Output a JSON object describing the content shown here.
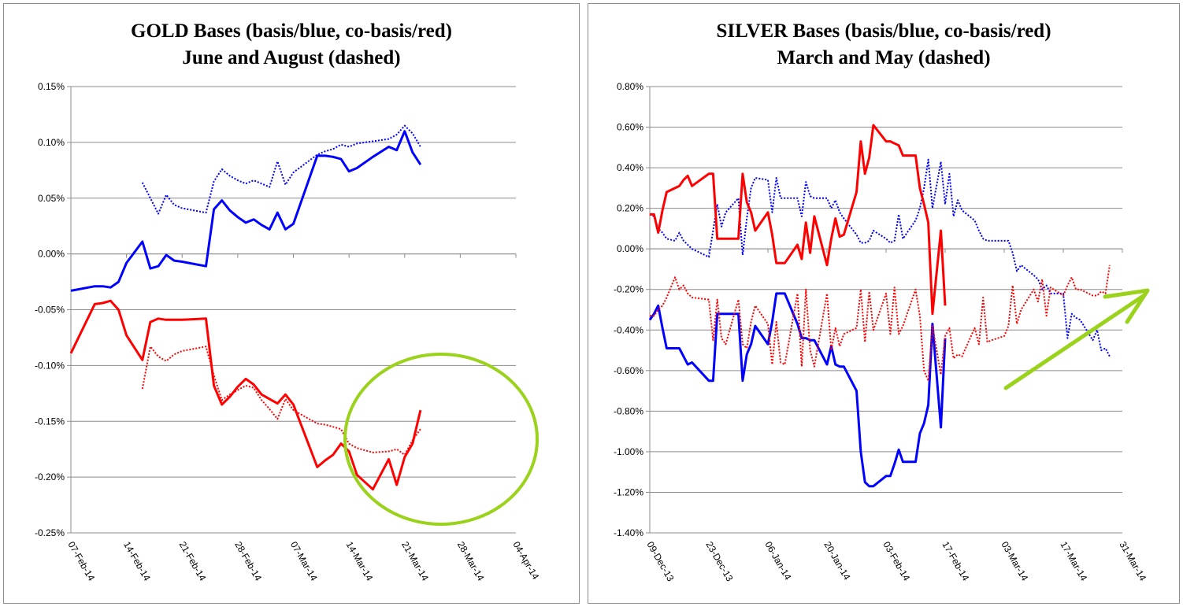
{
  "chart_data": [
    {
      "type": "line",
      "title": "GOLD Bases (basis/blue, co-basis/red)",
      "subtitle": "June and August (dashed)",
      "ylim": [
        -0.25,
        0.15
      ],
      "yticks": [
        "-0.25%",
        "-0.20%",
        "-0.15%",
        "-0.10%",
        "-0.05%",
        "0.00%",
        "0.05%",
        "0.10%",
        "0.15%"
      ],
      "xticks": [
        "07-Feb-14",
        "14-Feb-14",
        "21-Feb-14",
        "28-Feb-14",
        "07-Mar-14",
        "14-Mar-14",
        "21-Mar-14",
        "28-Mar-14",
        "04-Apr-14"
      ],
      "xlim_days": [
        0,
        56
      ],
      "grid": "horizontal",
      "series": [
        {
          "color": "#0000ff",
          "style": "solid",
          "x": [
            0,
            3,
            4,
            5,
            6,
            7,
            9,
            10,
            11,
            12,
            13,
            14,
            17,
            18,
            19,
            20,
            21,
            22,
            23,
            24,
            25,
            26,
            27,
            28,
            31,
            32,
            33,
            34,
            35,
            36,
            38,
            40,
            41,
            42,
            43,
            44
          ],
          "y": [
            -0.033,
            -0.029,
            -0.029,
            -0.03,
            -0.025,
            -0.008,
            0.011,
            -0.013,
            -0.011,
            -0.001,
            -0.006,
            -0.007,
            -0.011,
            0.04,
            0.048,
            0.039,
            0.033,
            0.028,
            0.031,
            0.026,
            0.022,
            0.037,
            0.022,
            0.027,
            0.088,
            0.088,
            0.087,
            0.085,
            0.074,
            0.077,
            0.087,
            0.096,
            0.093,
            0.11,
            0.091,
            0.08
          ]
        },
        {
          "color": "#0000ff",
          "style": "dotted",
          "x": [
            9,
            10,
            11,
            12,
            13,
            14,
            17,
            18,
            19,
            20,
            21,
            22,
            23,
            24,
            25,
            26,
            27,
            28,
            31,
            32,
            33,
            34,
            35,
            36,
            38,
            40,
            41,
            42,
            43,
            44
          ],
          "y": [
            0.064,
            0.05,
            0.036,
            0.053,
            0.044,
            0.041,
            0.037,
            0.065,
            0.076,
            0.07,
            0.066,
            0.063,
            0.066,
            0.063,
            0.06,
            0.083,
            0.062,
            0.073,
            0.089,
            0.092,
            0.094,
            0.098,
            0.096,
            0.099,
            0.101,
            0.103,
            0.107,
            0.115,
            0.108,
            0.096
          ]
        },
        {
          "color": "#ff0000",
          "style": "solid",
          "x": [
            0,
            3,
            4,
            5,
            6,
            7,
            9,
            10,
            11,
            12,
            13,
            14,
            17,
            18,
            19,
            20,
            21,
            22,
            23,
            24,
            25,
            26,
            27,
            28,
            31,
            32,
            33,
            34,
            35,
            36,
            38,
            40,
            41,
            42,
            43,
            44
          ],
          "y": [
            -0.089,
            -0.045,
            -0.044,
            -0.042,
            -0.05,
            -0.073,
            -0.095,
            -0.061,
            -0.058,
            -0.059,
            -0.059,
            -0.059,
            -0.058,
            -0.118,
            -0.135,
            -0.128,
            -0.119,
            -0.112,
            -0.117,
            -0.126,
            -0.13,
            -0.134,
            -0.126,
            -0.135,
            -0.191,
            -0.185,
            -0.18,
            -0.17,
            -0.177,
            -0.198,
            -0.211,
            -0.184,
            -0.207,
            -0.182,
            -0.17,
            -0.14
          ]
        },
        {
          "color": "#ff0000",
          "style": "dotted",
          "x": [
            9,
            10,
            11,
            12,
            13,
            14,
            17,
            18,
            19,
            20,
            21,
            22,
            23,
            24,
            25,
            26,
            27,
            28,
            31,
            32,
            33,
            34,
            35,
            36,
            38,
            40,
            41,
            42,
            43,
            44
          ],
          "y": [
            -0.121,
            -0.083,
            -0.092,
            -0.096,
            -0.09,
            -0.087,
            -0.083,
            -0.109,
            -0.131,
            -0.126,
            -0.122,
            -0.118,
            -0.12,
            -0.131,
            -0.139,
            -0.148,
            -0.13,
            -0.14,
            -0.152,
            -0.153,
            -0.155,
            -0.157,
            -0.17,
            -0.174,
            -0.178,
            -0.177,
            -0.175,
            -0.18,
            -0.167,
            -0.157
          ]
        }
      ],
      "annotation": {
        "shape": "ellipse",
        "color": "#9ad21c"
      }
    },
    {
      "type": "line",
      "title": "SILVER Bases (basis/blue, co-basis/red)",
      "subtitle": "March and May (dashed)",
      "ylim": [
        -1.4,
        0.8
      ],
      "yticks": [
        "-1.40%",
        "-1.20%",
        "-1.00%",
        "-0.80%",
        "-0.60%",
        "-0.40%",
        "-0.20%",
        "0.00%",
        "0.20%",
        "0.40%",
        "0.60%",
        "0.80%"
      ],
      "xticks": [
        "09-Dec-13",
        "23-Dec-13",
        "06-Jan-14",
        "20-Jan-14",
        "03-Feb-14",
        "17-Feb-14",
        "03-Mar-14",
        "17-Mar-14",
        "31-Mar-14"
      ],
      "xlim_days": [
        0,
        112
      ],
      "grid": "horizontal",
      "series": [
        {
          "color": "#0000ff",
          "style": "solid",
          "x": [
            0,
            1,
            2,
            3,
            4,
            6,
            7,
            8,
            9,
            10,
            14,
            15,
            16,
            17,
            18,
            21,
            22,
            23,
            24,
            25,
            28,
            29,
            30,
            31,
            32,
            35,
            36,
            37,
            38,
            39,
            42,
            43,
            44,
            45,
            46,
            49,
            50,
            51,
            52,
            53,
            56,
            57,
            58,
            59,
            60,
            63,
            64,
            65,
            66,
            67,
            69,
            70
          ],
          "y": [
            -0.35,
            -0.32,
            -0.28,
            -0.39,
            -0.49,
            -0.49,
            -0.49,
            -0.53,
            -0.57,
            -0.56,
            -0.65,
            -0.65,
            -0.32,
            -0.32,
            -0.32,
            -0.32,
            -0.65,
            -0.52,
            -0.47,
            -0.38,
            -0.47,
            -0.36,
            -0.22,
            -0.22,
            -0.22,
            -0.37,
            -0.44,
            -0.44,
            -0.45,
            -0.45,
            -0.57,
            -0.48,
            -0.57,
            -0.58,
            -0.58,
            -0.7,
            -1.0,
            -1.15,
            -1.17,
            -1.17,
            -1.12,
            -1.12,
            -1.06,
            -0.99,
            -1.05,
            -1.05,
            -0.91,
            -0.86,
            -0.77,
            -0.37,
            -0.88,
            -0.44
          ]
        },
        {
          "color": "#0000ff",
          "style": "dotted",
          "x": [
            0,
            1,
            2,
            3,
            4,
            6,
            7,
            8,
            9,
            10,
            14,
            15,
            16,
            17,
            18,
            21,
            22,
            23,
            24,
            25,
            28,
            29,
            30,
            31,
            32,
            35,
            36,
            37,
            38,
            39,
            42,
            43,
            44,
            45,
            46,
            49,
            50,
            51,
            52,
            53,
            56,
            57,
            58,
            59,
            60,
            63,
            64,
            65,
            66,
            67,
            69,
            70,
            71,
            72,
            73,
            74,
            77,
            78,
            79,
            80,
            81,
            84,
            85,
            86,
            87,
            88,
            91,
            92,
            93,
            94,
            95,
            98,
            99,
            100,
            101,
            102,
            105,
            106,
            107,
            108,
            109
          ],
          "y": [
            0.17,
            0.16,
            0.1,
            0.08,
            0.05,
            0.04,
            0.08,
            0.04,
            0.02,
            0.0,
            -0.04,
            0.09,
            0.22,
            0.11,
            0.18,
            0.25,
            -0.03,
            0.15,
            0.3,
            0.35,
            0.34,
            0.18,
            0.35,
            0.25,
            0.25,
            0.25,
            0.16,
            0.33,
            0.26,
            0.25,
            0.25,
            0.2,
            0.24,
            0.18,
            0.15,
            0.07,
            0.03,
            0.03,
            0.04,
            0.09,
            0.05,
            0.03,
            0.04,
            0.17,
            0.05,
            0.14,
            0.2,
            0.3,
            0.44,
            0.2,
            0.43,
            0.22,
            0.37,
            0.16,
            0.24,
            0.19,
            0.14,
            0.09,
            0.05,
            0.04,
            0.04,
            0.04,
            0.04,
            -0.02,
            -0.11,
            -0.08,
            -0.13,
            -0.15,
            -0.2,
            -0.18,
            -0.22,
            -0.22,
            -0.44,
            -0.32,
            -0.34,
            -0.35,
            -0.45,
            -0.4,
            -0.5,
            -0.49,
            -0.53
          ]
        },
        {
          "color": "#ff0000",
          "style": "solid",
          "x": [
            0,
            1,
            2,
            3,
            4,
            6,
            7,
            8,
            9,
            10,
            14,
            15,
            16,
            17,
            18,
            21,
            22,
            23,
            24,
            25,
            28,
            29,
            30,
            31,
            32,
            35,
            36,
            37,
            38,
            39,
            42,
            43,
            44,
            45,
            46,
            49,
            50,
            51,
            52,
            53,
            56,
            57,
            58,
            59,
            60,
            63,
            64,
            65,
            66,
            67,
            69,
            70
          ],
          "y": [
            0.17,
            0.17,
            0.08,
            0.19,
            0.28,
            0.3,
            0.31,
            0.34,
            0.36,
            0.31,
            0.37,
            0.37,
            0.05,
            0.05,
            0.05,
            0.05,
            0.37,
            0.23,
            0.18,
            0.09,
            0.18,
            0.07,
            -0.07,
            -0.07,
            -0.07,
            0.02,
            -0.05,
            0.13,
            -0.02,
            0.16,
            -0.08,
            0.05,
            0.15,
            0.06,
            0.07,
            0.28,
            0.53,
            0.37,
            0.45,
            0.61,
            0.53,
            0.53,
            0.52,
            0.51,
            0.46,
            0.46,
            0.3,
            0.22,
            0.13,
            -0.32,
            0.09,
            -0.28
          ]
        },
        {
          "color": "#ff0000",
          "style": "dotted",
          "x": [
            0,
            1,
            2,
            3,
            4,
            6,
            7,
            8,
            9,
            10,
            14,
            15,
            16,
            17,
            18,
            21,
            22,
            23,
            24,
            25,
            28,
            29,
            30,
            31,
            32,
            35,
            36,
            37,
            38,
            39,
            42,
            43,
            44,
            45,
            46,
            49,
            50,
            51,
            52,
            53,
            56,
            57,
            58,
            59,
            60,
            63,
            64,
            65,
            66,
            67,
            69,
            70,
            71,
            72,
            73,
            74,
            77,
            78,
            79,
            80,
            81,
            84,
            85,
            86,
            87,
            88,
            91,
            92,
            93,
            94,
            95,
            98,
            99,
            100,
            101,
            102,
            105,
            106,
            107,
            108,
            109
          ],
          "y": [
            -0.33,
            -0.33,
            -0.3,
            -0.28,
            -0.24,
            -0.14,
            -0.2,
            -0.18,
            -0.22,
            -0.24,
            -0.25,
            -0.45,
            -0.25,
            -0.44,
            -0.47,
            -0.25,
            -0.47,
            -0.49,
            -0.36,
            -0.28,
            -0.37,
            -0.57,
            -0.36,
            -0.56,
            -0.57,
            -0.22,
            -0.58,
            -0.2,
            -0.5,
            -0.58,
            -0.22,
            -0.5,
            -0.39,
            -0.48,
            -0.42,
            -0.39,
            -0.2,
            -0.46,
            -0.21,
            -0.4,
            -0.22,
            -0.42,
            -0.19,
            -0.42,
            -0.38,
            -0.2,
            -0.33,
            -0.6,
            -0.65,
            -0.38,
            -0.62,
            -0.43,
            -0.39,
            -0.54,
            -0.52,
            -0.53,
            -0.39,
            -0.47,
            -0.24,
            -0.46,
            -0.45,
            -0.43,
            -0.38,
            -0.18,
            -0.37,
            -0.3,
            -0.2,
            -0.26,
            -0.15,
            -0.33,
            -0.19,
            -0.23,
            -0.18,
            -0.14,
            -0.2,
            -0.2,
            -0.23,
            -0.23,
            -0.21,
            -0.22,
            -0.08
          ]
        }
      ],
      "annotation": {
        "shape": "arrow",
        "color": "#9ad21c"
      }
    }
  ]
}
